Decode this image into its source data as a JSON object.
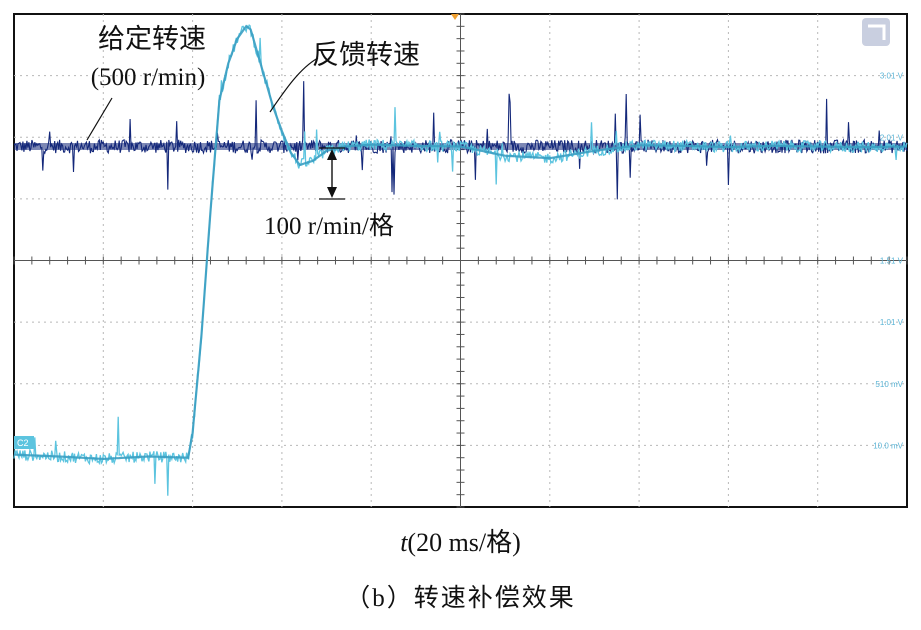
{
  "chart_data": {
    "type": "line",
    "title": "（b）转速补偿效果",
    "xlabel_var": "t",
    "xlabel_unit": "(20 ms/格)",
    "ylabel": "",
    "x_div_ms": 20,
    "y_div": "100 r/min/格",
    "xlim_div": [
      0,
      10
    ],
    "ylim_div": [
      0,
      8
    ],
    "grid": true,
    "series": [
      {
        "name": "给定转速",
        "annotation_line1": "给定转速",
        "annotation_line2": "(500 r/min)",
        "color": "#14287a",
        "x_div": [
          0,
          10
        ],
        "y_div": [
          5.85,
          5.85
        ]
      },
      {
        "name": "反馈转速",
        "color": "#5cc4df",
        "x_div": [
          0,
          0.5,
          1.0,
          1.5,
          1.95,
          2.0,
          2.1,
          2.2,
          2.3,
          2.4,
          2.5,
          2.6,
          2.65,
          2.7,
          2.8,
          2.9,
          3.0,
          3.1,
          3.2,
          3.35,
          3.5,
          3.7,
          4.0,
          4.5,
          5.0,
          5.5,
          6.0,
          6.5,
          7.0,
          7.5,
          8.0,
          8.5,
          9.0,
          9.5,
          10.0
        ],
        "y_div": [
          0.85,
          0.82,
          0.78,
          0.82,
          0.8,
          1.2,
          2.8,
          4.8,
          6.6,
          7.2,
          7.6,
          7.8,
          7.75,
          7.5,
          7.0,
          6.5,
          6.1,
          5.75,
          5.55,
          5.62,
          5.78,
          5.85,
          5.88,
          5.86,
          5.85,
          5.7,
          5.66,
          5.78,
          5.87,
          5.86,
          5.84,
          5.86,
          5.85,
          5.84,
          5.85
        ]
      }
    ],
    "annotations": {
      "feedback_label": "反馈转速",
      "scale_label": "100 r/min/格"
    },
    "right_labels": [
      "3.01 V",
      "2.01 V",
      "1.51 V",
      "1.01 V",
      "510 mV",
      "10.0 mV"
    ],
    "channel_marker": "C2"
  }
}
